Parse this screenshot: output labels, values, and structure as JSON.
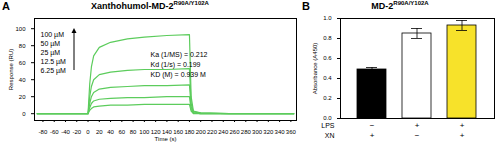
{
  "chart_data": [
    {
      "panel": "A",
      "type": "line",
      "title": "Xanthohumol-MD-2",
      "title_superscript": "R90A/Y102A",
      "x_label": "Time (s)",
      "y_label": "Response (RU)",
      "xlim": [
        -95,
        370
      ],
      "xticks": [
        -80,
        -60,
        -40,
        -20,
        0,
        20,
        40,
        60,
        80,
        100,
        120,
        140,
        160,
        180,
        200,
        220,
        240,
        260,
        280,
        300,
        320,
        340,
        360
      ],
      "ylim": [
        -8,
        112
      ],
      "yticks": [
        0,
        20,
        40,
        60,
        80,
        100
      ],
      "x": [
        -90,
        -40,
        0,
        3,
        6,
        10,
        20,
        40,
        70,
        100,
        140,
        180,
        183,
        187,
        200,
        250,
        300,
        365
      ],
      "series": [
        {
          "name": "100 µM",
          "color": "#5ccc5c",
          "values": [
            0,
            0,
            0,
            35,
            55,
            68,
            78,
            84,
            88,
            90,
            92,
            93,
            20,
            3,
            1,
            0,
            0,
            0
          ]
        },
        {
          "name": "50 µM",
          "color": "#5ccc5c",
          "values": [
            0,
            0,
            0,
            20,
            32,
            40,
            46,
            49,
            51,
            52,
            52,
            53,
            12,
            2,
            1,
            0,
            0,
            0
          ]
        },
        {
          "name": "25 µM",
          "color": "#5ccc5c",
          "values": [
            0,
            0,
            0,
            12,
            20,
            25,
            29,
            31,
            32,
            33,
            33,
            34,
            8,
            1,
            0,
            0,
            0,
            0
          ]
        },
        {
          "name": "12.5 µM",
          "color": "#5ccc5c",
          "values": [
            0,
            0,
            0,
            7,
            12,
            15,
            17,
            18,
            19,
            19,
            20,
            20,
            5,
            1,
            0,
            0,
            0,
            0
          ]
        },
        {
          "name": "6.25 µM",
          "color": "#5ccc5c",
          "values": [
            0,
            0,
            0,
            4,
            6,
            8,
            9,
            10,
            10,
            11,
            11,
            11,
            3,
            0,
            0,
            0,
            0,
            0
          ]
        }
      ],
      "annotations": [
        "Ka (1/MS) = 0.212",
        "Kd (1/s) = 0.199",
        "KD (M) = 0.939 M"
      ]
    },
    {
      "panel": "B",
      "type": "bar",
      "title": "MD-2",
      "title_superscript": "R90A/Y102A",
      "y_label": "Absorbance (A450)",
      "categories": [
        null,
        null,
        null
      ],
      "values": [
        0.49,
        0.85,
        0.93
      ],
      "errors": [
        0.02,
        0.05,
        0.05
      ],
      "colors": [
        "#000000",
        "#ffffff",
        "#f7e22a"
      ],
      "ylim": [
        0,
        1
      ],
      "yticks": [
        {
          "value": 0,
          "label": "0.0"
        },
        {
          "value": 0.2,
          "label": "0.2"
        },
        {
          "value": 0.4,
          "label": "0.4"
        },
        {
          "value": 0.6,
          "label": "0.6"
        },
        {
          "value": 0.8,
          "label": "0.8"
        },
        {
          "value": 1,
          "label": "1.0"
        }
      ],
      "x_rows": [
        {
          "label": "LPS",
          "values": [
            "−",
            "+",
            "+"
          ]
        },
        {
          "label": "XN",
          "values": [
            "+",
            "−",
            "+"
          ]
        }
      ]
    }
  ]
}
